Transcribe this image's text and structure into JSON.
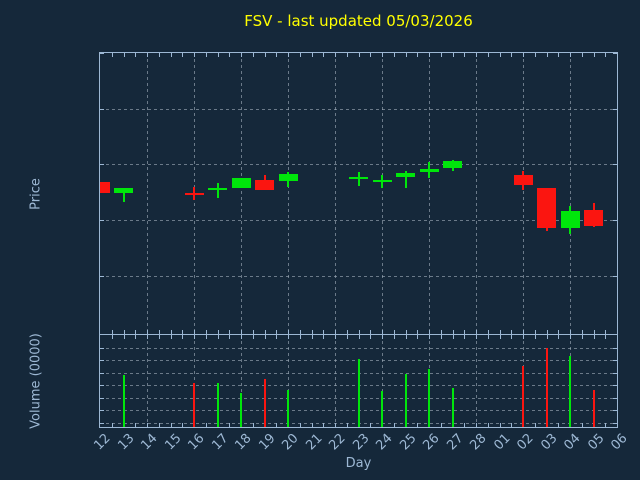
{
  "title": "FSV - last updated 05/03/2026",
  "xlabel": "Day",
  "price_axis_label": "Price",
  "volume_axis_label": "Volume (0000)",
  "colors": {
    "background": "#15283a",
    "axis": "#9db8d4",
    "label": "#9db8d4",
    "grid": "#99a7b4",
    "title": "#ffff00",
    "up": "#00e60b",
    "down": "#fb1510"
  },
  "chart_data": {
    "type": "candlestick",
    "title": "FSV - last updated 05/03/2026",
    "xlabel": "Day",
    "price_ylabel": "Price",
    "volume_ylabel": "Volume (0000)",
    "x_categories": [
      "12",
      "13",
      "14",
      "15",
      "16",
      "17",
      "18",
      "19",
      "20",
      "21",
      "22",
      "23",
      "24",
      "25",
      "26",
      "27",
      "28",
      "01",
      "02",
      "03",
      "04",
      "05",
      "06"
    ],
    "price_ticks": [
      507,
      483,
      459,
      435,
      411
    ],
    "price_ylim": [
      386,
      507
    ],
    "volume_ticks": [
      140,
      120,
      100,
      80,
      60,
      40,
      20,
      0
    ],
    "volume_ylim": [
      -7,
      140
    ],
    "grid_on_days": [
      "14",
      "16",
      "18",
      "20",
      "22",
      "24",
      "26",
      "28",
      "02",
      "04"
    ],
    "candles": [
      {
        "day": "12",
        "open": 451.5,
        "high": 451.5,
        "low": 446.9,
        "close": 446.9,
        "volume": 0
      },
      {
        "day": "13",
        "open": 446.5,
        "high": 449.0,
        "low": 443.0,
        "close": 449.0,
        "volume": 76
      },
      {
        "day": "16",
        "open": 446.9,
        "high": 449.3,
        "low": 443.9,
        "close": 446.5,
        "volume": 64
      },
      {
        "day": "17",
        "open": 448.3,
        "high": 451.0,
        "low": 444.5,
        "close": 448.7,
        "volume": 64
      },
      {
        "day": "18",
        "open": 449.0,
        "high": 453.2,
        "low": 449.0,
        "close": 453.2,
        "volume": 48
      },
      {
        "day": "19",
        "open": 452.2,
        "high": 454.3,
        "low": 448.2,
        "close": 448.2,
        "volume": 70
      },
      {
        "day": "20",
        "open": 451.9,
        "high": 455.8,
        "low": 449.3,
        "close": 455.1,
        "volume": 52
      },
      {
        "day": "23",
        "open": 453.2,
        "high": 455.9,
        "low": 449.8,
        "close": 453.7,
        "volume": 102
      },
      {
        "day": "24",
        "open": 451.9,
        "high": 454.6,
        "low": 448.8,
        "close": 452.4,
        "volume": 50
      },
      {
        "day": "25",
        "open": 453.5,
        "high": 456.0,
        "low": 448.7,
        "close": 455.5,
        "volume": 77
      },
      {
        "day": "26",
        "open": 455.8,
        "high": 460.0,
        "low": 453.3,
        "close": 457.0,
        "volume": 85
      },
      {
        "day": "27",
        "open": 457.3,
        "high": 461.0,
        "low": 456.3,
        "close": 460.5,
        "volume": 56
      },
      {
        "day": "02",
        "open": 454.6,
        "high": 456.4,
        "low": 447.9,
        "close": 450.0,
        "volume": 90
      },
      {
        "day": "03",
        "open": 448.9,
        "high": 448.9,
        "low": 430.5,
        "close": 431.5,
        "volume": 120
      },
      {
        "day": "04",
        "open": 431.5,
        "high": 441.0,
        "low": 429.0,
        "close": 439.0,
        "volume": 107
      },
      {
        "day": "05",
        "open": 439.5,
        "high": 442.5,
        "low": 432.0,
        "close": 432.5,
        "volume": 52
      }
    ]
  }
}
